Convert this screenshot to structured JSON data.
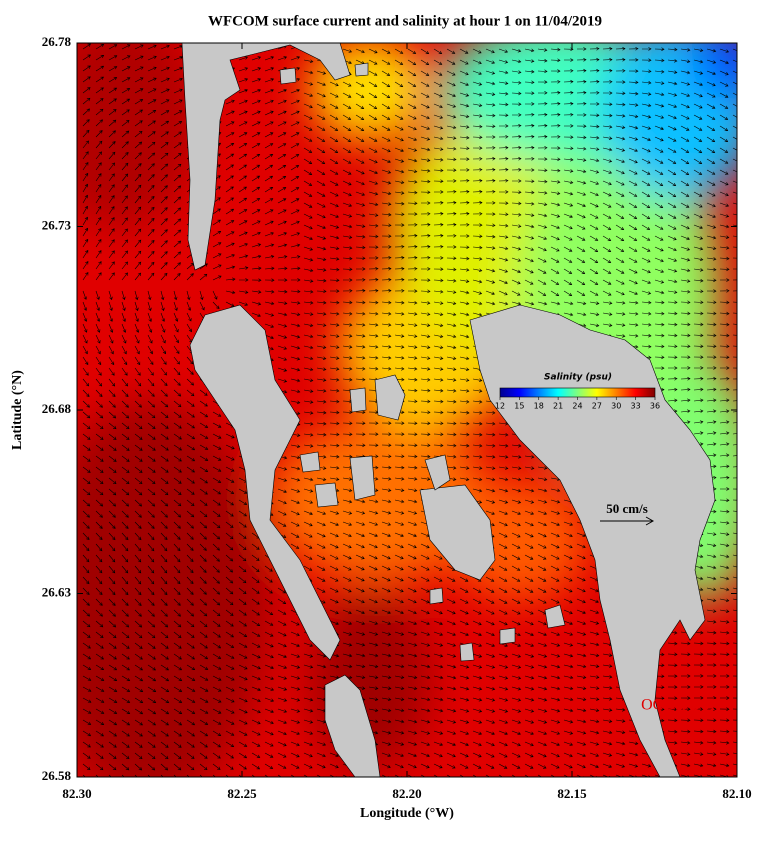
{
  "title": "WFCOM surface current and salinity at hour 1 on 11/04/2019",
  "x_axis": {
    "label": "Longitude (°W)",
    "lim": [
      82.3,
      82.1
    ],
    "ticks": [
      {
        "value": 82.3,
        "label": "82.30"
      },
      {
        "value": 82.25,
        "label": "82.25"
      },
      {
        "value": 82.2,
        "label": "82.20"
      },
      {
        "value": 82.15,
        "label": "82.15"
      },
      {
        "value": 82.1,
        "label": "82.10"
      }
    ]
  },
  "y_axis": {
    "label": "Latitude (°N)",
    "lim": [
      26.58,
      26.78
    ],
    "ticks": [
      {
        "value": 26.58,
        "label": "26.58"
      },
      {
        "value": 26.63,
        "label": "26.63"
      },
      {
        "value": 26.68,
        "label": "26.68"
      },
      {
        "value": 26.73,
        "label": "26.73"
      },
      {
        "value": 26.78,
        "label": "26.78"
      }
    ]
  },
  "colorbar": {
    "title": "Salinity (psu)",
    "lim": [
      12,
      36
    ],
    "ticks": [
      12,
      15,
      18,
      21,
      24,
      27,
      30,
      33,
      36
    ]
  },
  "scale_arrow": "50 cm/s",
  "credit": "OCG@USF"
}
